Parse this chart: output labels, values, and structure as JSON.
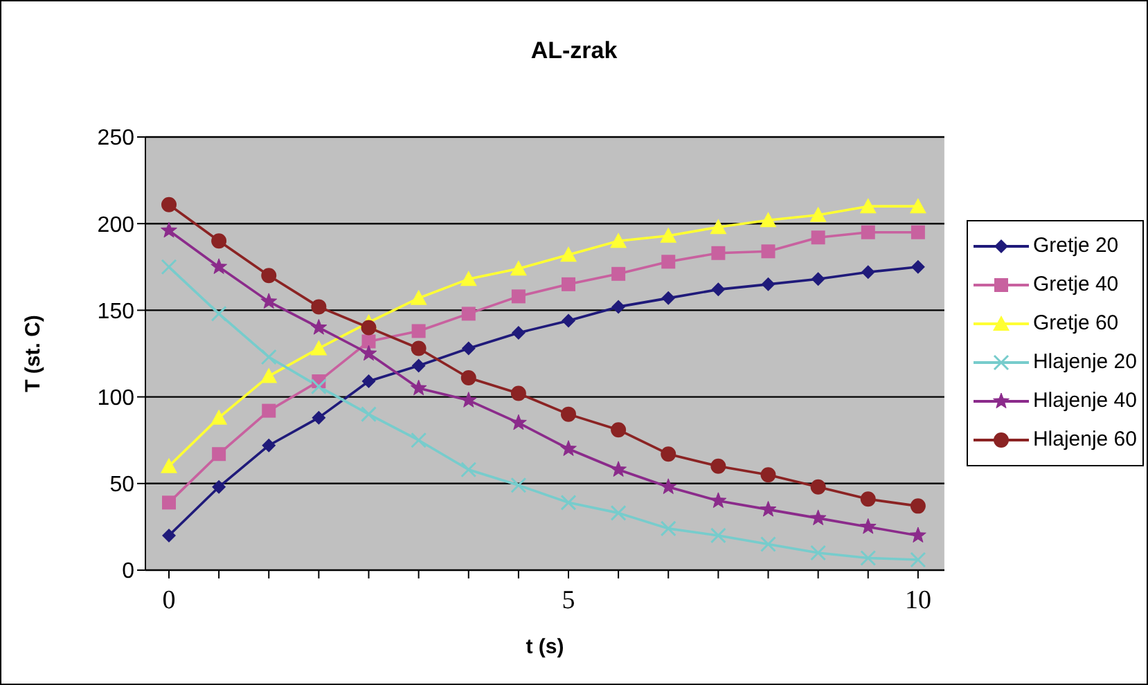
{
  "chart_data": {
    "type": "line",
    "title": "AL-zrak",
    "xlabel": "t (s)",
    "ylabel": "T (st. C)",
    "categories": [
      "0",
      null,
      null,
      null,
      null,
      null,
      null,
      null,
      "5",
      null,
      null,
      null,
      null,
      null,
      null,
      "10"
    ],
    "ylim": [
      0,
      250
    ],
    "yticks": [
      0,
      50,
      100,
      150,
      200,
      250
    ],
    "grid": "y",
    "legend": "right",
    "series": [
      {
        "name": "Gretje 20",
        "color": "#1f1a7a",
        "marker": "diamond",
        "values": [
          20,
          48,
          72,
          88,
          109,
          118,
          128,
          137,
          144,
          152,
          157,
          162,
          165,
          168,
          172,
          175
        ]
      },
      {
        "name": "Gretje 40",
        "color": "#c8619f",
        "marker": "square",
        "values": [
          39,
          67,
          92,
          109,
          132,
          138,
          148,
          158,
          165,
          171,
          178,
          183,
          184,
          192,
          195,
          195
        ]
      },
      {
        "name": "Gretje 60",
        "color": "#ffff33",
        "marker": "triangle",
        "values": [
          60,
          88,
          112,
          128,
          143,
          157,
          168,
          174,
          182,
          190,
          193,
          198,
          202,
          205,
          210,
          210
        ]
      },
      {
        "name": "Hlajenje 20",
        "color": "#77cccc",
        "marker": "cross",
        "values": [
          175,
          148,
          123,
          106,
          90,
          75,
          58,
          49,
          39,
          33,
          24,
          20,
          15,
          10,
          7,
          6
        ]
      },
      {
        "name": "Hlajenje 40",
        "color": "#8b2b8b",
        "marker": "star",
        "values": [
          196,
          175,
          155,
          140,
          125,
          105,
          98,
          85,
          70,
          58,
          48,
          40,
          35,
          30,
          25,
          20
        ]
      },
      {
        "name": "Hlajenje 60",
        "color": "#8b2323",
        "marker": "circle",
        "values": [
          211,
          190,
          170,
          152,
          140,
          128,
          111,
          102,
          90,
          81,
          67,
          60,
          55,
          48,
          41,
          37
        ]
      }
    ]
  }
}
